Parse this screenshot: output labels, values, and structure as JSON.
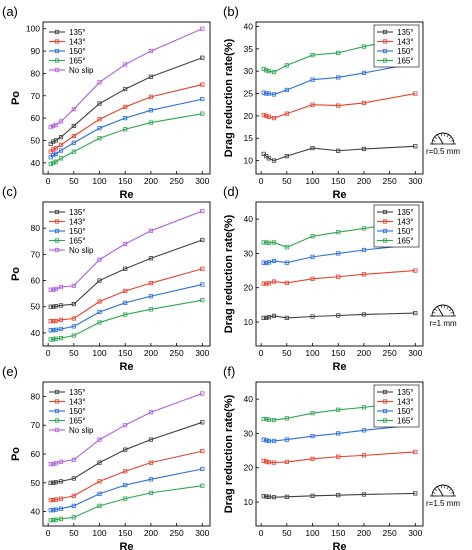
{
  "chart_data": [
    {
      "panel": "(a)",
      "type": "line",
      "xlabel": "Re",
      "ylabel": "Po",
      "xlim": [
        -10,
        315
      ],
      "ylim": [
        35,
        103
      ],
      "xticks": [
        0,
        50,
        100,
        150,
        200,
        250,
        300
      ],
      "yticks": [
        40,
        50,
        60,
        70,
        80,
        90,
        100
      ],
      "x": [
        5,
        10,
        15,
        25,
        50,
        100,
        150,
        200,
        300
      ],
      "legend_position": "top-left",
      "series": [
        {
          "name": "135°",
          "color": "#404040",
          "marker": "square",
          "values": [
            48.5,
            49.5,
            50,
            51.5,
            56.5,
            66.5,
            73,
            78.5,
            87
          ]
        },
        {
          "name": "143°",
          "color": "#e8412d",
          "marker": "square",
          "values": [
            45,
            46,
            46.5,
            48,
            52,
            59.5,
            65,
            69.5,
            75
          ]
        },
        {
          "name": "150°",
          "color": "#2a6fdb",
          "marker": "square",
          "values": [
            42.5,
            43.5,
            44,
            45.5,
            49,
            55.5,
            60,
            63.5,
            68.5
          ]
        },
        {
          "name": "165°",
          "color": "#2ea84f",
          "marker": "square",
          "values": [
            39.5,
            40,
            40.5,
            42,
            45,
            51,
            55,
            58,
            62
          ]
        },
        {
          "name": "No slip",
          "color": "#b05fe0",
          "marker": "square",
          "values": [
            56,
            56.5,
            57,
            58.5,
            64,
            76,
            84,
            90,
            100
          ]
        }
      ]
    },
    {
      "panel": "(b)",
      "type": "line",
      "xlabel": "Re",
      "ylabel": "Drag reduction rate(%)",
      "xlim": [
        -10,
        315
      ],
      "ylim": [
        7,
        41
      ],
      "xticks": [
        0,
        50,
        100,
        150,
        200,
        250,
        300
      ],
      "yticks": [
        10,
        15,
        20,
        25,
        30,
        35,
        40
      ],
      "x": [
        5,
        10,
        15,
        25,
        50,
        100,
        150,
        200,
        300
      ],
      "legend_position": "top-right",
      "gauge_label": "r=0.5 mm",
      "series": [
        {
          "name": "135°",
          "color": "#404040",
          "marker": "square",
          "values": [
            11.5,
            11,
            10.5,
            10,
            11,
            12.8,
            12.2,
            12.6,
            13.2
          ]
        },
        {
          "name": "143°",
          "color": "#e8412d",
          "marker": "square",
          "values": [
            20.2,
            20,
            19.8,
            19.5,
            20.5,
            22.5,
            22.3,
            22.9,
            25
          ]
        },
        {
          "name": "150°",
          "color": "#2a6fdb",
          "marker": "square",
          "values": [
            25.2,
            25,
            25,
            24.8,
            25.8,
            28.1,
            28.6,
            29.6,
            31.8
          ]
        },
        {
          "name": "165°",
          "color": "#2ea84f",
          "marker": "square",
          "values": [
            30.5,
            30.2,
            30,
            29.8,
            31.3,
            33.6,
            34.1,
            35.5,
            38
          ]
        }
      ]
    },
    {
      "panel": "(c)",
      "type": "line",
      "xlabel": "Re",
      "ylabel": "Po",
      "xlim": [
        -10,
        315
      ],
      "ylim": [
        35,
        90
      ],
      "xticks": [
        0,
        50,
        100,
        150,
        200,
        250,
        300
      ],
      "yticks": [
        40,
        50,
        60,
        70,
        80
      ],
      "x": [
        5,
        10,
        15,
        25,
        50,
        100,
        150,
        200,
        300
      ],
      "legend_position": "top-left",
      "series": [
        {
          "name": "135°",
          "color": "#404040",
          "marker": "square",
          "values": [
            50,
            50,
            50.2,
            50.5,
            51,
            60,
            64.5,
            68.5,
            75.5
          ]
        },
        {
          "name": "143°",
          "color": "#e8412d",
          "marker": "square",
          "values": [
            44.5,
            44.5,
            44.5,
            45,
            45.5,
            52,
            56,
            59,
            64.5
          ]
        },
        {
          "name": "150°",
          "color": "#2a6fdb",
          "marker": "square",
          "values": [
            41,
            41,
            41.2,
            41.5,
            42.5,
            48,
            51.5,
            54,
            58.5
          ]
        },
        {
          "name": "165°",
          "color": "#2ea84f",
          "marker": "square",
          "values": [
            37.5,
            37.5,
            37.8,
            38,
            39,
            44,
            47,
            49,
            52.5
          ]
        },
        {
          "name": "No slip",
          "color": "#b05fe0",
          "marker": "square",
          "values": [
            56.5,
            56.5,
            56.8,
            57.5,
            58,
            68,
            74,
            79,
            86.5
          ]
        }
      ]
    },
    {
      "panel": "(d)",
      "type": "line",
      "xlabel": "Re",
      "ylabel": "Drag reduction rate(%)",
      "xlim": [
        -10,
        315
      ],
      "ylim": [
        3,
        45
      ],
      "xticks": [
        0,
        50,
        100,
        150,
        200,
        250,
        300
      ],
      "yticks": [
        10,
        20,
        30,
        40
      ],
      "x": [
        5,
        10,
        15,
        25,
        50,
        100,
        150,
        200,
        300
      ],
      "legend_position": "top-right",
      "gauge_label": "r=1 mm",
      "series": [
        {
          "name": "135°",
          "color": "#404040",
          "marker": "square",
          "values": [
            11.2,
            11.2,
            11.4,
            11.8,
            11.2,
            11.6,
            11.9,
            12.2,
            12.6
          ]
        },
        {
          "name": "143°",
          "color": "#e8412d",
          "marker": "square",
          "values": [
            21.2,
            21.2,
            21.3,
            21.8,
            21.4,
            22.6,
            23.2,
            23.9,
            25
          ]
        },
        {
          "name": "150°",
          "color": "#2a6fdb",
          "marker": "square",
          "values": [
            27.3,
            27.2,
            27.4,
            27.8,
            27.3,
            29,
            30,
            31,
            32.6
          ]
        },
        {
          "name": "165°",
          "color": "#2ea84f",
          "marker": "square",
          "values": [
            33.2,
            33.2,
            33.1,
            33.2,
            31.8,
            35,
            36.2,
            37.3,
            39.4
          ]
        }
      ]
    },
    {
      "panel": "(e)",
      "type": "line",
      "xlabel": "Re",
      "ylabel": "Po",
      "xlim": [
        -10,
        315
      ],
      "ylim": [
        35,
        85
      ],
      "xticks": [
        0,
        50,
        100,
        150,
        200,
        250,
        300
      ],
      "yticks": [
        40,
        50,
        60,
        70,
        80
      ],
      "x": [
        5,
        10,
        15,
        25,
        50,
        100,
        150,
        200,
        300
      ],
      "legend_position": "top-left",
      "series": [
        {
          "name": "135°",
          "color": "#404040",
          "marker": "square",
          "values": [
            50,
            50,
            50.2,
            50.5,
            51.5,
            57,
            61.5,
            65,
            71
          ]
        },
        {
          "name": "143°",
          "color": "#e8412d",
          "marker": "square",
          "values": [
            44,
            44,
            44.2,
            44.5,
            45.5,
            50.5,
            54,
            57,
            61
          ]
        },
        {
          "name": "150°",
          "color": "#2a6fdb",
          "marker": "square",
          "values": [
            40.5,
            40.5,
            40.7,
            41,
            42,
            46.2,
            49.2,
            51.2,
            54.8
          ]
        },
        {
          "name": "165°",
          "color": "#2ea84f",
          "marker": "square",
          "values": [
            37,
            37,
            37.2,
            37.5,
            38,
            42,
            44.5,
            46.5,
            49
          ]
        },
        {
          "name": "No slip",
          "color": "#b05fe0",
          "marker": "square",
          "values": [
            56.5,
            56.5,
            56.8,
            57.3,
            58,
            65,
            70,
            74.5,
            81
          ]
        }
      ]
    },
    {
      "panel": "(f)",
      "type": "line",
      "xlabel": "Re",
      "ylabel": "Drag reduction rate(%)",
      "xlim": [
        -10,
        315
      ],
      "ylim": [
        3,
        45
      ],
      "xticks": [
        0,
        50,
        100,
        150,
        200,
        250,
        300
      ],
      "yticks": [
        10,
        20,
        30,
        40
      ],
      "x": [
        5,
        10,
        15,
        25,
        50,
        100,
        150,
        200,
        300
      ],
      "legend_position": "top-right",
      "gauge_label": "r=1.5 mm",
      "series": [
        {
          "name": "135°",
          "color": "#404040",
          "marker": "square",
          "values": [
            11.7,
            11.6,
            11.5,
            11.4,
            11.5,
            11.8,
            12,
            12.2,
            12.5
          ]
        },
        {
          "name": "143°",
          "color": "#e8412d",
          "marker": "square",
          "values": [
            22,
            21.8,
            21.6,
            21.5,
            21.7,
            22.6,
            23.2,
            23.6,
            24.6
          ]
        },
        {
          "name": "150°",
          "color": "#2a6fdb",
          "marker": "square",
          "values": [
            28.2,
            28,
            27.8,
            27.8,
            28.2,
            29.2,
            30,
            30.9,
            32.5
          ]
        },
        {
          "name": "165°",
          "color": "#2ea84f",
          "marker": "square",
          "values": [
            34.2,
            34.2,
            34,
            33.9,
            34.4,
            35.9,
            36.9,
            37.6,
            39.4
          ]
        }
      ]
    }
  ]
}
